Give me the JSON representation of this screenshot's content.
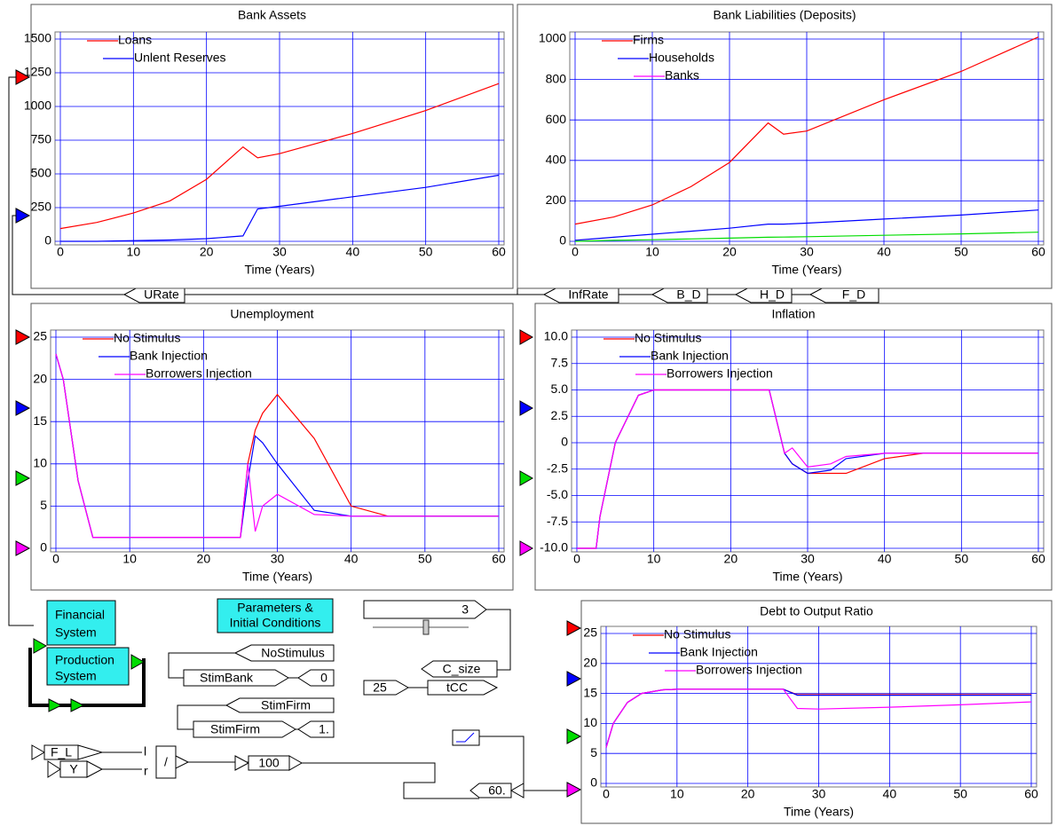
{
  "chart_data": [
    {
      "type": "line",
      "title": "Bank Assets",
      "xlabel": "Time (Years)",
      "x": [
        0,
        5,
        10,
        15,
        20,
        25,
        27,
        30,
        40,
        50,
        60
      ],
      "series": [
        {
          "name": "Loans",
          "color": "#ff0000",
          "values": [
            95,
            140,
            210,
            300,
            460,
            700,
            620,
            650,
            800,
            970,
            1170
          ]
        },
        {
          "name": "Unlent Reserves",
          "color": "#0000ff",
          "values": [
            0,
            0,
            5,
            10,
            20,
            40,
            240,
            260,
            330,
            400,
            490
          ]
        }
      ],
      "xlim": [
        0,
        60
      ],
      "xticks": [
        0,
        10,
        20,
        30,
        40,
        50,
        60
      ],
      "ylim": [
        0,
        1500
      ],
      "yticks": [
        0,
        250,
        500,
        750,
        1000,
        1250,
        1500
      ],
      "grid": true
    },
    {
      "type": "line",
      "title": "Bank Liabilities (Deposits)",
      "xlabel": "Time (Years)",
      "x": [
        0,
        5,
        10,
        15,
        20,
        25,
        27,
        30,
        40,
        50,
        60
      ],
      "series": [
        {
          "name": "Firms",
          "color": "#ff0000",
          "values": [
            85,
            120,
            180,
            270,
            390,
            585,
            530,
            545,
            700,
            840,
            1010
          ]
        },
        {
          "name": "Households",
          "color": "#0000ff",
          "values": [
            5,
            20,
            35,
            50,
            65,
            85,
            85,
            90,
            110,
            130,
            155
          ]
        },
        {
          "name": "Banks",
          "color": "#00dd00",
          "legend_color": "#ff00ff",
          "values": [
            0,
            5,
            8,
            12,
            16,
            20,
            21,
            23,
            30,
            37,
            45
          ]
        }
      ],
      "xlim": [
        0,
        60
      ],
      "xticks": [
        0,
        10,
        20,
        30,
        40,
        50,
        60
      ],
      "ylim": [
        0,
        1000
      ],
      "yticks": [
        0,
        200,
        400,
        600,
        800,
        1000
      ],
      "grid": true
    },
    {
      "type": "line",
      "title": "Unemployment",
      "xlabel": "Time (Years)",
      "x": [
        0,
        1,
        3,
        5,
        10,
        20,
        25,
        26,
        27,
        28,
        30,
        35,
        40,
        45,
        60
      ],
      "series": [
        {
          "name": "No Stimulus",
          "color": "#ff0000",
          "values": [
            23,
            20,
            8,
            1.3,
            1.3,
            1.3,
            1.3,
            10,
            14,
            16,
            18.2,
            13,
            5,
            3.8,
            3.8
          ]
        },
        {
          "name": "Bank Injection",
          "color": "#0000ff",
          "values": [
            23,
            20,
            8,
            1.3,
            1.3,
            1.3,
            1.3,
            8,
            13.3,
            12.5,
            10,
            4.5,
            3.8,
            3.8,
            3.8
          ]
        },
        {
          "name": "Borrowers Injection",
          "color": "#ff00ff",
          "values": [
            23,
            20,
            8,
            1.3,
            1.3,
            1.3,
            1.3,
            10,
            2,
            5,
            6.4,
            4,
            3.8,
            3.8,
            3.8
          ]
        }
      ],
      "xlim": [
        0,
        60
      ],
      "xticks": [
        0,
        10,
        20,
        30,
        40,
        50,
        60
      ],
      "ylim": [
        0,
        25
      ],
      "yticks": [
        0,
        5,
        10,
        15,
        20,
        25
      ],
      "grid": true
    },
    {
      "type": "line",
      "title": "Inflation",
      "xlabel": "Time (Years)",
      "x": [
        0,
        2.5,
        3,
        5,
        8,
        10,
        25,
        27,
        28,
        30,
        33,
        35,
        40,
        45,
        60
      ],
      "series": [
        {
          "name": "No Stimulus",
          "color": "#ff0000",
          "values": [
            -10,
            -10,
            -7,
            0,
            4.5,
            5,
            5,
            -1,
            -2,
            -2.9,
            -2.9,
            -2.9,
            -1.5,
            -1,
            -1
          ]
        },
        {
          "name": "Bank Injection",
          "color": "#0000ff",
          "values": [
            -10,
            -10,
            -7,
            0,
            4.5,
            5,
            5,
            -1,
            -2,
            -2.9,
            -2.6,
            -1.5,
            -1,
            -1,
            -1
          ]
        },
        {
          "name": "Borrowers Injection",
          "color": "#ff00ff",
          "values": [
            -10,
            -10,
            -7,
            0,
            4.5,
            5,
            5,
            -1,
            -0.5,
            -2.3,
            -2,
            -1.3,
            -1,
            -1,
            -1
          ]
        }
      ],
      "xlim": [
        0,
        60
      ],
      "xticks": [
        0,
        10,
        20,
        30,
        40,
        50,
        60
      ],
      "ylim": [
        -10,
        10
      ],
      "yticks": [
        {
          "value": -10,
          "label": "-10.0"
        },
        -7.5,
        {
          "value": -5,
          "label": "-5.0"
        },
        -2.5,
        0,
        2.5,
        {
          "value": 5,
          "label": "5.0"
        },
        7.5,
        {
          "value": 10,
          "label": "10.0"
        }
      ],
      "grid": true
    },
    {
      "type": "line",
      "title": "Debt to Output Ratio",
      "xlabel": "Time (Years)",
      "x": [
        0,
        1,
        3,
        5,
        8,
        10,
        20,
        25,
        27,
        30,
        40,
        50,
        60
      ],
      "series": [
        {
          "name": "No Stimulus",
          "color": "#ff0000",
          "values": [
            6,
            10,
            13.5,
            15,
            15.6,
            15.7,
            15.7,
            15.7,
            14.8,
            14.8,
            14.8,
            14.8,
            14.8
          ]
        },
        {
          "name": "Bank Injection",
          "color": "#0000ff",
          "values": [
            6,
            10,
            13.5,
            15,
            15.6,
            15.7,
            15.7,
            15.7,
            14.7,
            14.7,
            14.7,
            14.7,
            14.7
          ]
        },
        {
          "name": "Borrowers Injection",
          "color": "#ff00ff",
          "values": [
            6,
            10,
            13.5,
            15,
            15.6,
            15.7,
            15.7,
            15.7,
            12.5,
            12.4,
            12.7,
            13.1,
            13.6
          ]
        }
      ],
      "xlim": [
        0,
        60
      ],
      "xticks": [
        0,
        10,
        20,
        30,
        40,
        50,
        60
      ],
      "ylim": [
        0,
        25
      ],
      "yticks": [
        0,
        5,
        10,
        15,
        20,
        25
      ],
      "grid": true
    }
  ],
  "ui": {
    "urate": "URate",
    "infrate": "InfRate",
    "b_d": "B_D",
    "h_d": "H_D",
    "f_d": "F_D",
    "financial_system": [
      "Financial",
      "System"
    ],
    "parameters": [
      "Parameters &",
      "Initial Conditions"
    ],
    "production_system": [
      "Production",
      "System"
    ],
    "slider_value": "3",
    "c_size": "C_size",
    "const_25": "25",
    "tcc": "tCC",
    "nostimulus": "NoStimulus",
    "stimbank": "StimBank",
    "stimbank_value": "0",
    "stimfirm_var": "StimFirm",
    "stimfirm": "StimFirm",
    "stimfirm_value": "1.",
    "f_l": "F_L",
    "y": "Y",
    "divide": "/",
    "port_l": "l",
    "port_r": "r",
    "const_100": "100",
    "ratio_value": "60."
  }
}
